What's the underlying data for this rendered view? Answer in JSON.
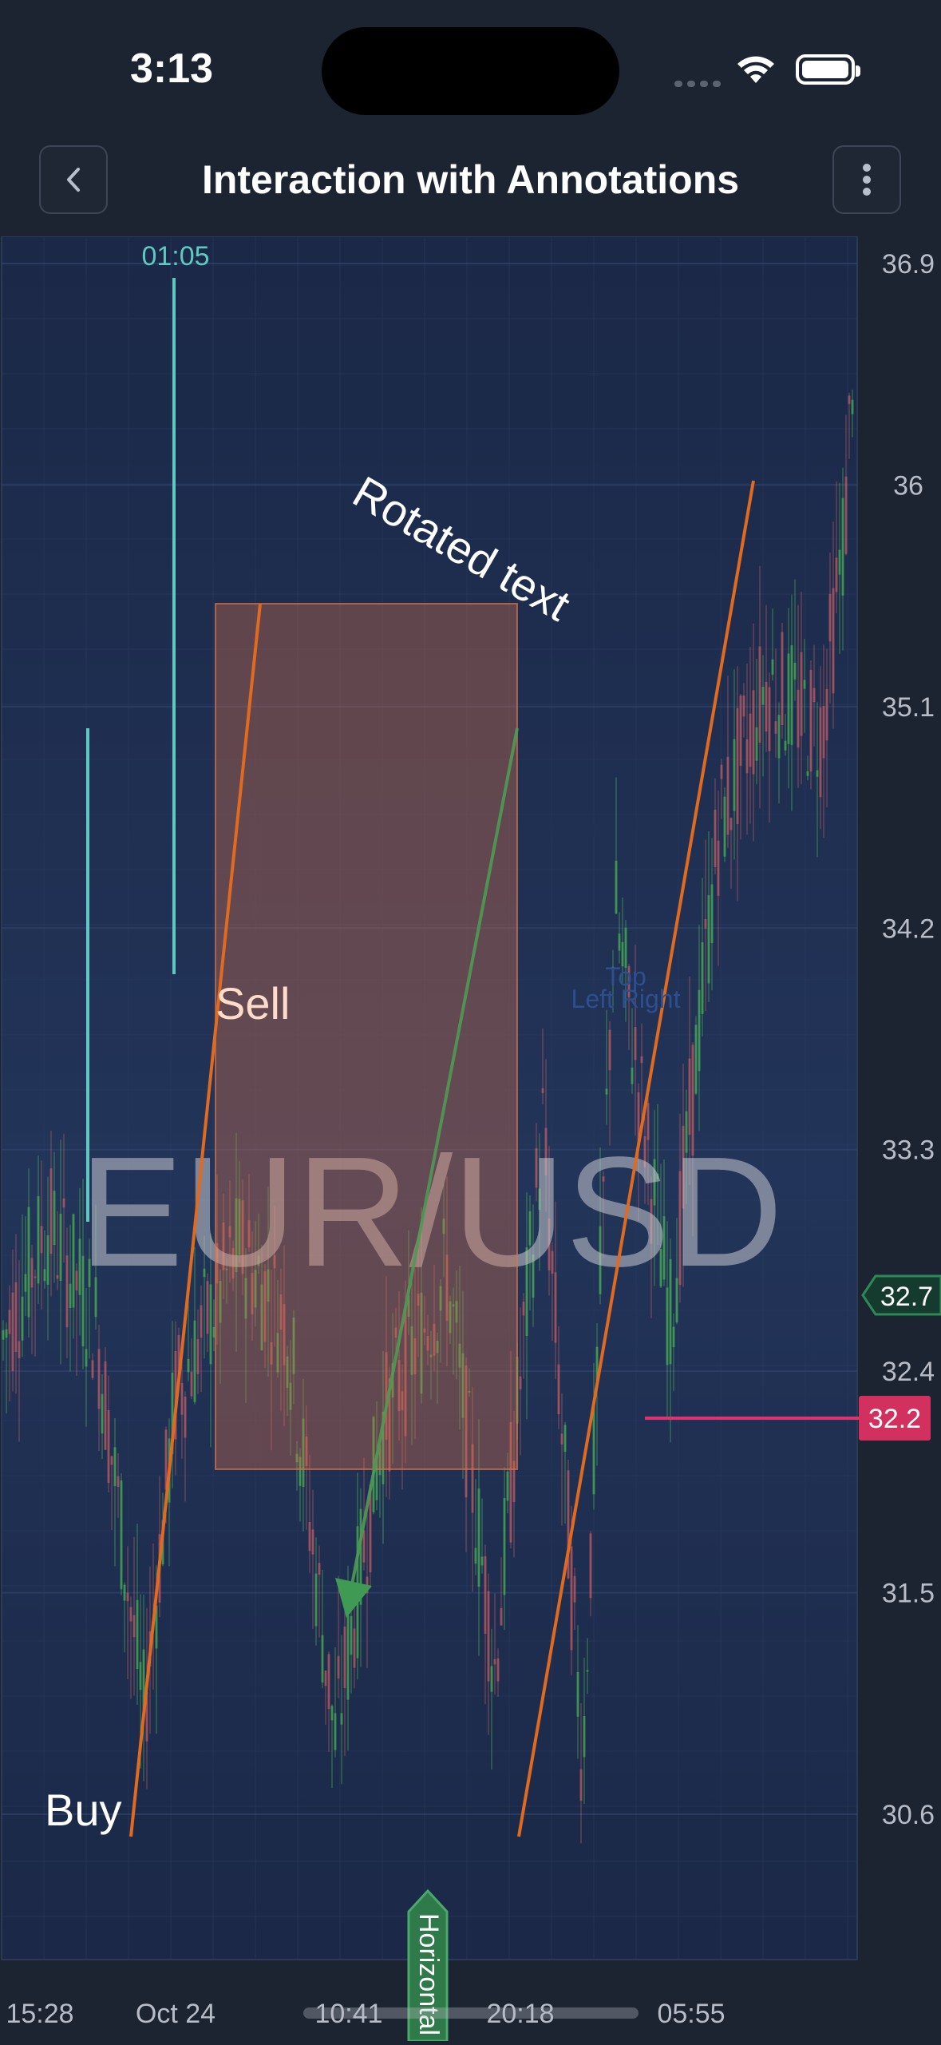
{
  "status": {
    "time": "3:13"
  },
  "nav": {
    "title": "Interaction with Annotations"
  },
  "chart_data": {
    "type": "candlestick",
    "watermark": "EUR/USD",
    "ylim": [
      30.1,
      37.0
    ],
    "y_ticks": [
      "36.9",
      "36",
      "35.1",
      "34.2",
      "33.3",
      "32.4",
      "31.5",
      "30.6"
    ],
    "x_ticks": [
      "15:28",
      "Oct 24",
      "10:41",
      "20:18",
      "05:55"
    ],
    "annotations": {
      "sell_label": "Sell",
      "buy_label": "Buy",
      "rotated_label": "Rotated text",
      "top_label": "Top",
      "left_right_label": "Left Right",
      "vertical_line_label": "01:05",
      "horizontal_line_value": "32.2",
      "latest_price": "32.7",
      "axis_marker_label": "Horizontal"
    },
    "colors": {
      "up": "#52cc54",
      "down": "#e26565",
      "box_fill": "#d9734a",
      "orange_line": "#e06a1f",
      "cyan_line": "#5fc8c0",
      "red_line": "#e0336d",
      "green_marker": "#2f7a49",
      "background": "#1e2b4f"
    }
  }
}
